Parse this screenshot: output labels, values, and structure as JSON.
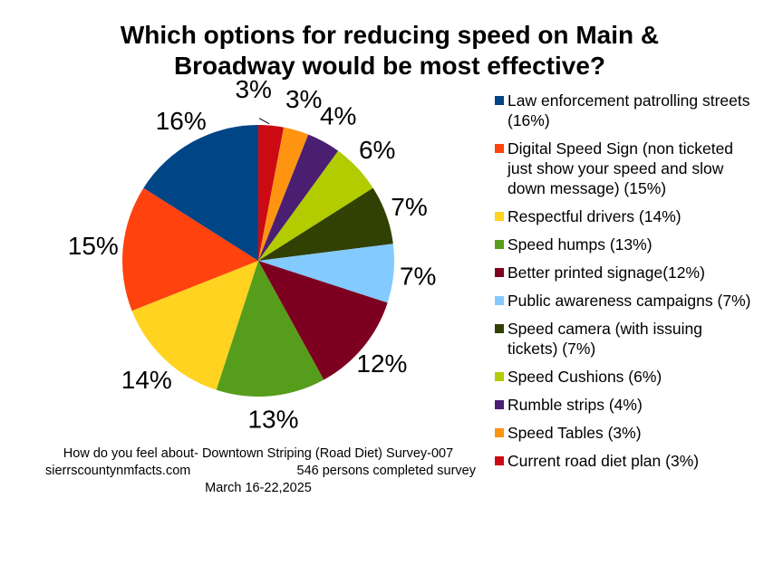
{
  "chart_data": {
    "type": "pie",
    "title": "Which options for reducing speed on Main & Broadway would be most effective?",
    "title_lines": [
      "Which options for reducing speed on Main &",
      "Broadway would be most effective?"
    ],
    "start_angle": "12 o'clock",
    "direction": "clockwise",
    "legend_position": "right",
    "slices_clockwise_from_top": [
      {
        "name": "Current road diet plan",
        "value": 3,
        "label": "3%",
        "color": "#cc0a14"
      },
      {
        "name": "Speed Tables",
        "value": 3,
        "label": "3%",
        "color": "#ff9411"
      },
      {
        "name": "Rumble strips",
        "value": 4,
        "label": "4%",
        "color": "#4a1f72"
      },
      {
        "name": "Speed Cushions",
        "value": 6,
        "label": "6%",
        "color": "#b2cc00"
      },
      {
        "name": "Speed camera (with issuing tickets)",
        "value": 7,
        "label": "7%",
        "color": "#314003"
      },
      {
        "name": "Public awareness campaigns",
        "value": 7,
        "label": "7%",
        "color": "#83caff"
      },
      {
        "name": "Better printed signage",
        "value": 12,
        "label": "12%",
        "color": "#7e0021"
      },
      {
        "name": "Speed humps",
        "value": 13,
        "label": "13%",
        "color": "#579d1c"
      },
      {
        "name": "Respectful drivers",
        "value": 14,
        "label": "14%",
        "color": "#ffd320"
      },
      {
        "name": "Digital Speed Sign",
        "value": 15,
        "label": "15%",
        "color": "#ff420e"
      },
      {
        "name": "Law enforcement patrolling streets",
        "value": 16,
        "label": "16%",
        "color": "#004586"
      }
    ],
    "legend": [
      {
        "text": "Law enforcement patrolling streets\n (16%)",
        "color": "#004586"
      },
      {
        "text": "Digital Speed Sign (non ticketed\njust show your speed and slow\ndown message) (15%)",
        "color": "#ff420e"
      },
      {
        "text": "Respectful drivers (14%)",
        "color": "#ffd320"
      },
      {
        "text": "Speed humps (13%)",
        "color": "#579d1c"
      },
      {
        "text": "Better printed signage(12%)",
        "color": "#7e0021"
      },
      {
        "text": "Public awareness campaigns (7%)",
        "color": "#83caff"
      },
      {
        "text": "Speed camera (with issuing\ntickets) (7%)",
        "color": "#314003"
      },
      {
        "text": "Speed Cushions (6%)",
        "color": "#b2cc00"
      },
      {
        "text": "Rumble strips (4%)",
        "color": "#4a1f72"
      },
      {
        "text": "Speed Tables (3%)",
        "color": "#ff9411"
      },
      {
        "text": "Current road diet plan (3%)",
        "color": "#cc0a14"
      }
    ]
  },
  "footer": {
    "line1": "How do you feel about- Downtown Striping (Road Diet) Survey-007",
    "website": "sierrscountynmfacts.com",
    "respondents": "546 persons completed survey",
    "dates": "March 16-22,2025"
  }
}
